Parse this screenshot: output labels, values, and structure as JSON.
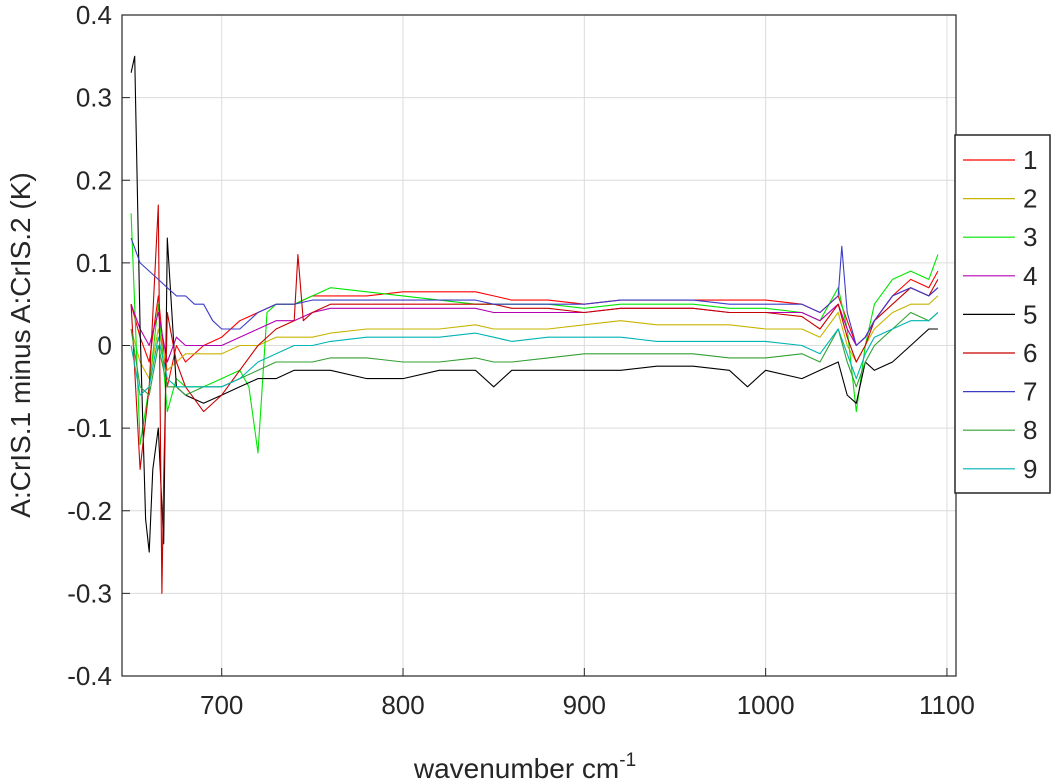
{
  "chart_data": {
    "type": "line",
    "title": "",
    "xlabel": "wavenumber cm",
    "xlabel_superscript": "-1",
    "ylabel": "A:CrIS.1 minus A:CrIS.2 (K)",
    "xlim": [
      645,
      1105
    ],
    "ylim": [
      -0.4,
      0.4
    ],
    "xticks": [
      700,
      800,
      900,
      1000,
      1100
    ],
    "xtick_labels": [
      "700",
      "800",
      "900",
      "1000",
      "1100"
    ],
    "yticks": [
      -0.4,
      -0.3,
      -0.2,
      -0.1,
      0,
      0.1,
      0.2,
      0.3,
      0.4
    ],
    "ytick_labels": [
      "-0.4",
      "-0.3",
      "-0.2",
      "-0.1",
      "0",
      "0.1",
      "0.2",
      "0.3",
      "0.4"
    ],
    "grid": true,
    "legend_position": "outside-right",
    "series": [
      {
        "name": "1",
        "color": "#ff0000",
        "x": [
          650,
          655,
          660,
          665,
          670,
          675,
          680,
          690,
          700,
          710,
          720,
          730,
          740,
          750,
          760,
          780,
          800,
          820,
          840,
          850,
          860,
          880,
          900,
          920,
          940,
          960,
          980,
          1000,
          1020,
          1030,
          1040,
          1045,
          1050,
          1055,
          1060,
          1070,
          1080,
          1090,
          1095
        ],
        "y": [
          0.05,
          0.01,
          -0.02,
          0.06,
          -0.05,
          0.0,
          -0.02,
          0.0,
          0.01,
          0.03,
          0.04,
          0.05,
          0.05,
          0.06,
          0.06,
          0.06,
          0.065,
          0.065,
          0.065,
          0.06,
          0.055,
          0.055,
          0.05,
          0.055,
          0.055,
          0.055,
          0.055,
          0.055,
          0.05,
          0.04,
          0.06,
          0.03,
          0.0,
          0.01,
          0.03,
          0.06,
          0.08,
          0.07,
          0.09
        ]
      },
      {
        "name": "2",
        "color": "#c8b400",
        "x": [
          650,
          655,
          660,
          665,
          670,
          675,
          680,
          690,
          700,
          710,
          720,
          730,
          740,
          750,
          760,
          780,
          800,
          820,
          840,
          850,
          860,
          880,
          900,
          920,
          940,
          960,
          980,
          1000,
          1020,
          1030,
          1040,
          1045,
          1050,
          1055,
          1060,
          1070,
          1080,
          1090,
          1095
        ],
        "y": [
          0.02,
          -0.02,
          -0.04,
          0.02,
          -0.03,
          -0.02,
          -0.01,
          -0.01,
          -0.01,
          0.0,
          0.0,
          0.01,
          0.01,
          0.01,
          0.015,
          0.02,
          0.02,
          0.02,
          0.025,
          0.02,
          0.02,
          0.02,
          0.025,
          0.03,
          0.025,
          0.025,
          0.025,
          0.02,
          0.02,
          0.01,
          0.04,
          0.0,
          -0.02,
          0.0,
          0.02,
          0.04,
          0.05,
          0.05,
          0.06
        ]
      },
      {
        "name": "3",
        "color": "#00e600",
        "x": [
          650,
          655,
          660,
          665,
          670,
          675,
          680,
          690,
          700,
          710,
          715,
          720,
          725,
          730,
          740,
          750,
          760,
          780,
          800,
          820,
          840,
          850,
          860,
          880,
          900,
          920,
          940,
          960,
          980,
          1000,
          1020,
          1030,
          1040,
          1045,
          1050,
          1055,
          1060,
          1070,
          1080,
          1090,
          1095
        ],
        "y": [
          0.16,
          -0.12,
          -0.05,
          0.05,
          -0.08,
          -0.04,
          -0.05,
          -0.05,
          -0.04,
          -0.03,
          -0.05,
          -0.13,
          0.04,
          0.05,
          0.05,
          0.06,
          0.07,
          0.065,
          0.06,
          0.055,
          0.05,
          0.05,
          0.05,
          0.05,
          0.045,
          0.05,
          0.05,
          0.05,
          0.045,
          0.045,
          0.04,
          0.03,
          0.07,
          0.02,
          -0.08,
          0.0,
          0.05,
          0.08,
          0.09,
          0.08,
          0.11
        ]
      },
      {
        "name": "4",
        "color": "#b400b4",
        "x": [
          650,
          655,
          660,
          665,
          670,
          675,
          680,
          690,
          700,
          710,
          720,
          730,
          740,
          750,
          760,
          780,
          800,
          820,
          840,
          850,
          860,
          880,
          900,
          920,
          940,
          960,
          980,
          1000,
          1020,
          1030,
          1040,
          1045,
          1050,
          1055,
          1060,
          1070,
          1080,
          1090,
          1095
        ],
        "y": [
          0.05,
          0.02,
          0.0,
          0.04,
          -0.02,
          0.01,
          0.0,
          0.0,
          0.0,
          0.01,
          0.02,
          0.03,
          0.03,
          0.04,
          0.045,
          0.045,
          0.045,
          0.045,
          0.045,
          0.04,
          0.04,
          0.04,
          0.04,
          0.045,
          0.045,
          0.045,
          0.04,
          0.04,
          0.04,
          0.03,
          0.05,
          0.02,
          0.0,
          0.01,
          0.03,
          0.06,
          0.07,
          0.06,
          0.07
        ]
      },
      {
        "name": "5",
        "color": "#000000",
        "x": [
          650,
          652,
          655,
          658,
          660,
          662,
          665,
          668,
          670,
          675,
          680,
          690,
          700,
          710,
          720,
          730,
          740,
          750,
          760,
          780,
          800,
          820,
          840,
          850,
          860,
          880,
          900,
          920,
          940,
          960,
          980,
          990,
          1000,
          1020,
          1030,
          1040,
          1045,
          1050,
          1055,
          1060,
          1070,
          1080,
          1090,
          1095
        ],
        "y": [
          0.33,
          0.35,
          0.02,
          -0.21,
          -0.25,
          -0.15,
          -0.1,
          -0.24,
          0.13,
          -0.05,
          -0.06,
          -0.07,
          -0.06,
          -0.05,
          -0.04,
          -0.04,
          -0.03,
          -0.03,
          -0.03,
          -0.04,
          -0.04,
          -0.03,
          -0.03,
          -0.05,
          -0.03,
          -0.03,
          -0.03,
          -0.03,
          -0.025,
          -0.025,
          -0.03,
          -0.05,
          -0.03,
          -0.04,
          -0.03,
          -0.02,
          -0.06,
          -0.07,
          -0.02,
          -0.03,
          -0.02,
          0.0,
          0.02,
          0.02
        ]
      },
      {
        "name": "6",
        "color": "#c80000",
        "x": [
          650,
          655,
          660,
          665,
          667,
          668,
          670,
          675,
          680,
          690,
          700,
          710,
          720,
          730,
          740,
          742,
          745,
          750,
          760,
          780,
          800,
          820,
          840,
          850,
          860,
          880,
          900,
          920,
          940,
          960,
          980,
          1000,
          1020,
          1030,
          1040,
          1045,
          1050,
          1055,
          1060,
          1070,
          1080,
          1090,
          1095
        ],
        "y": [
          0.05,
          -0.15,
          -0.05,
          0.17,
          -0.3,
          -0.16,
          0.04,
          -0.02,
          -0.05,
          -0.08,
          -0.06,
          -0.03,
          0.0,
          0.02,
          0.03,
          0.11,
          0.03,
          0.04,
          0.05,
          0.05,
          0.05,
          0.05,
          0.05,
          0.05,
          0.045,
          0.045,
          0.04,
          0.045,
          0.045,
          0.045,
          0.04,
          0.04,
          0.035,
          0.02,
          0.05,
          0.01,
          -0.02,
          0.0,
          0.03,
          0.05,
          0.07,
          0.06,
          0.08
        ]
      },
      {
        "name": "7",
        "color": "#3c3cc8",
        "x": [
          650,
          655,
          660,
          665,
          670,
          675,
          680,
          685,
          690,
          695,
          700,
          710,
          720,
          730,
          740,
          750,
          760,
          780,
          800,
          820,
          840,
          850,
          860,
          880,
          900,
          920,
          940,
          960,
          980,
          1000,
          1020,
          1030,
          1040,
          1042,
          1045,
          1050,
          1055,
          1060,
          1070,
          1080,
          1090,
          1095
        ],
        "y": [
          0.13,
          0.1,
          0.09,
          0.08,
          0.07,
          0.06,
          0.06,
          0.05,
          0.05,
          0.03,
          0.02,
          0.02,
          0.04,
          0.05,
          0.05,
          0.055,
          0.055,
          0.055,
          0.055,
          0.055,
          0.055,
          0.05,
          0.05,
          0.05,
          0.05,
          0.055,
          0.055,
          0.055,
          0.05,
          0.05,
          0.05,
          0.04,
          0.06,
          0.12,
          0.04,
          0.0,
          0.01,
          0.03,
          0.06,
          0.07,
          0.06,
          0.07
        ]
      },
      {
        "name": "8",
        "color": "#32a032",
        "x": [
          650,
          655,
          660,
          665,
          670,
          675,
          680,
          690,
          700,
          710,
          720,
          730,
          740,
          750,
          760,
          780,
          800,
          820,
          840,
          850,
          860,
          880,
          900,
          920,
          940,
          960,
          980,
          1000,
          1020,
          1030,
          1040,
          1045,
          1050,
          1055,
          1060,
          1070,
          1080,
          1090,
          1095
        ],
        "y": [
          0.02,
          -0.05,
          -0.06,
          0.0,
          -0.05,
          -0.05,
          -0.06,
          -0.05,
          -0.05,
          -0.04,
          -0.03,
          -0.02,
          -0.02,
          -0.02,
          -0.015,
          -0.015,
          -0.02,
          -0.02,
          -0.015,
          -0.02,
          -0.02,
          -0.015,
          -0.01,
          -0.01,
          -0.01,
          -0.01,
          -0.015,
          -0.015,
          -0.01,
          -0.02,
          0.02,
          -0.02,
          -0.05,
          -0.02,
          0.0,
          0.02,
          0.04,
          0.03,
          0.04
        ]
      },
      {
        "name": "9",
        "color": "#00b4b4",
        "x": [
          650,
          655,
          660,
          665,
          670,
          675,
          680,
          690,
          700,
          710,
          720,
          730,
          740,
          750,
          760,
          780,
          800,
          820,
          840,
          850,
          860,
          880,
          900,
          920,
          940,
          960,
          980,
          1000,
          1020,
          1030,
          1040,
          1045,
          1050,
          1055,
          1060,
          1070,
          1080,
          1090,
          1095
        ],
        "y": [
          0.0,
          -0.06,
          -0.05,
          0.01,
          -0.04,
          -0.05,
          -0.05,
          -0.05,
          -0.05,
          -0.04,
          -0.02,
          -0.01,
          0.0,
          0.0,
          0.005,
          0.01,
          0.01,
          0.01,
          0.015,
          0.01,
          0.005,
          0.01,
          0.01,
          0.01,
          0.005,
          0.005,
          0.005,
          0.005,
          0.0,
          -0.01,
          0.02,
          -0.01,
          -0.04,
          -0.01,
          0.01,
          0.02,
          0.03,
          0.03,
          0.04
        ]
      }
    ]
  }
}
